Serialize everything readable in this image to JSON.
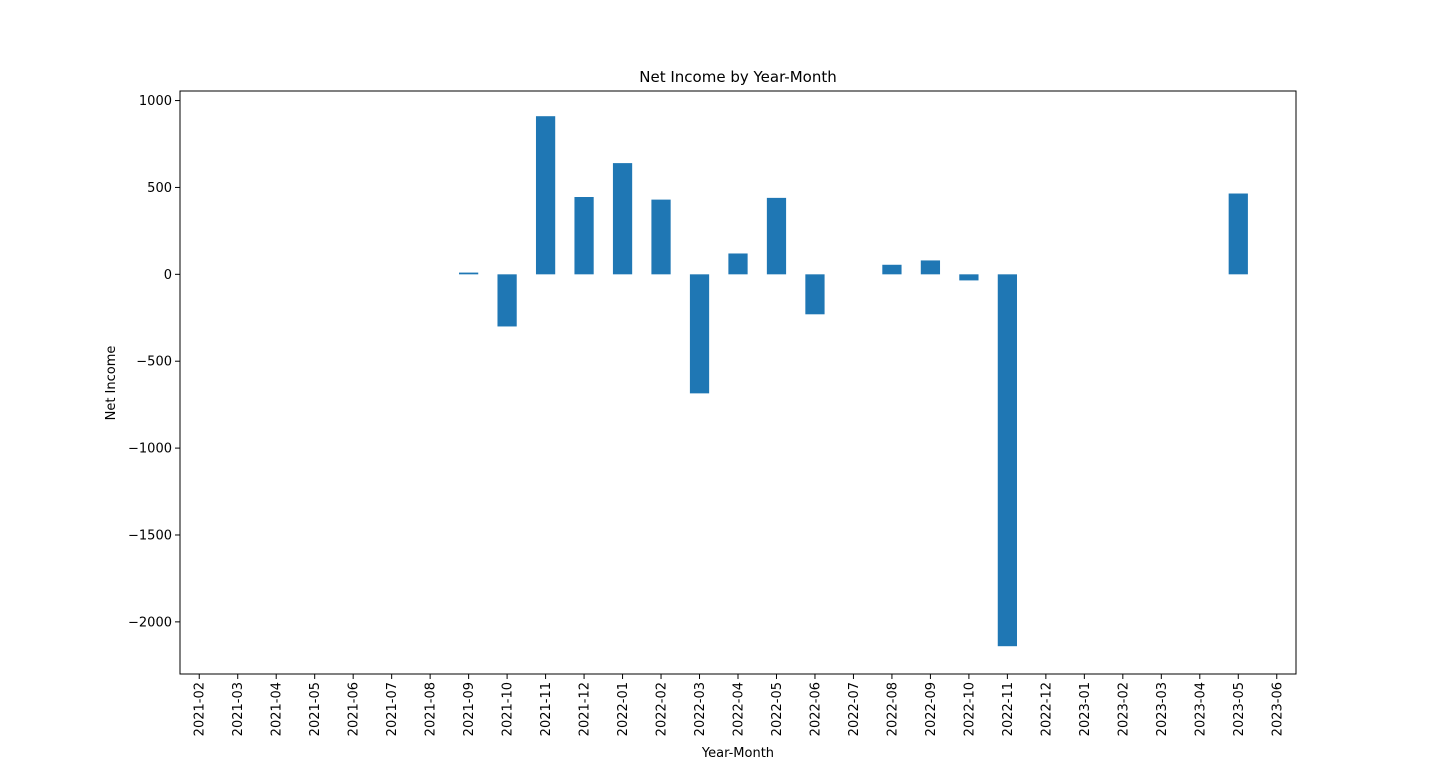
{
  "chart_data": {
    "type": "bar",
    "title": "Net Income by Year-Month",
    "xlabel": "Year-Month",
    "ylabel": "Net Income",
    "categories": [
      "2021-02",
      "2021-03",
      "2021-04",
      "2021-05",
      "2021-06",
      "2021-07",
      "2021-08",
      "2021-09",
      "2021-10",
      "2021-11",
      "2021-12",
      "2022-01",
      "2022-02",
      "2022-03",
      "2022-04",
      "2022-05",
      "2022-06",
      "2022-07",
      "2022-08",
      "2022-09",
      "2022-10",
      "2022-11",
      "2022-12",
      "2023-01",
      "2023-02",
      "2023-03",
      "2023-04",
      "2023-05",
      "2023-06"
    ],
    "values": [
      0,
      0,
      0,
      0,
      0,
      0,
      0,
      10,
      -300,
      910,
      445,
      640,
      430,
      -685,
      120,
      440,
      -230,
      0,
      55,
      80,
      -35,
      -2140,
      0,
      0,
      0,
      0,
      0,
      465,
      0
    ],
    "ylim": [
      -2300,
      1055
    ],
    "yticks": [
      1000,
      500,
      0,
      -500,
      -1000,
      -1500,
      -2000
    ],
    "ytick_labels": [
      "1000",
      "500",
      "0",
      "−500",
      "−1000",
      "−1500",
      "−2000"
    ],
    "bar_color": "#1f77b4",
    "grid": false,
    "legend": "none"
  }
}
